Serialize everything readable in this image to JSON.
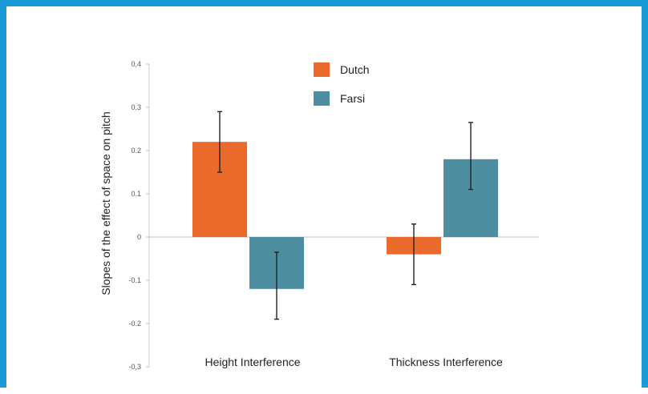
{
  "chart_data": {
    "type": "bar",
    "title": "",
    "xlabel": "",
    "ylabel": "Slopes of the effect of space on pitch",
    "categories": [
      "Height Interference",
      "Thickness Interference"
    ],
    "ylim": [
      -0.3,
      0.4
    ],
    "yticks": [
      0.4,
      0.3,
      0.2,
      0.1,
      0,
      -0.1,
      -0.2,
      -0.3
    ],
    "ytick_labels": [
      "0,4",
      "0.3",
      "0.2",
      "0.1",
      "0",
      "-0.1",
      "-0.2",
      "-0,3"
    ],
    "grid": false,
    "legend_position": "top-center",
    "series": [
      {
        "name": "Dutch",
        "color": "#ea6a2c",
        "values": [
          0.22,
          -0.04
        ],
        "error_low": [
          0.15,
          -0.11
        ],
        "error_high": [
          0.29,
          0.03
        ]
      },
      {
        "name": "Farsi",
        "color": "#4d8ea1",
        "values": [
          -0.12,
          0.18
        ],
        "error_low": [
          -0.19,
          0.11
        ],
        "error_high": [
          -0.035,
          0.265
        ]
      }
    ]
  }
}
